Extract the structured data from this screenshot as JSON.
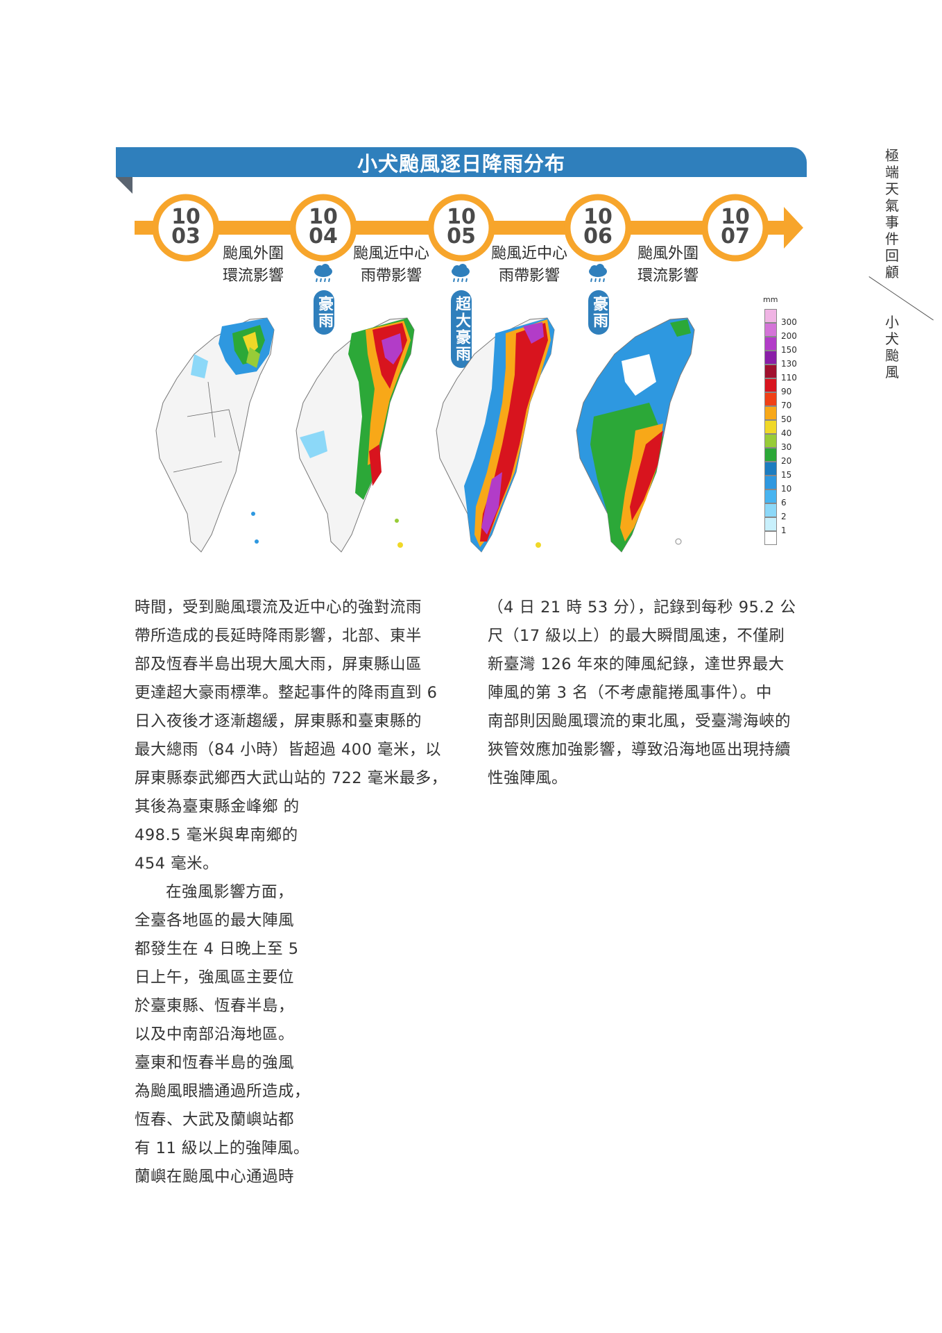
{
  "header": {
    "title": "小犬颱風逐日降雨分布"
  },
  "timeline": {
    "dates": [
      {
        "month": "10",
        "day": "03"
      },
      {
        "month": "10",
        "day": "04"
      },
      {
        "month": "10",
        "day": "05"
      },
      {
        "month": "10",
        "day": "06"
      },
      {
        "month": "10",
        "day": "07"
      }
    ],
    "phases": [
      {
        "line1": "颱風外圍",
        "line2": "環流影響"
      },
      {
        "line1": "颱風近中心",
        "line2": "雨帶影響"
      },
      {
        "line1": "颱風近中心",
        "line2": "雨帶影響"
      },
      {
        "line1": "颱風外圍",
        "line2": "環流影響"
      }
    ],
    "tags": [
      "豪雨",
      "超大豪雨",
      "豪雨"
    ],
    "colors": {
      "arrow": "#f7a52b",
      "tag": "#2f7fbc"
    }
  },
  "legend": {
    "unit": "mm",
    "levels": [
      "300",
      "200",
      "150",
      "130",
      "110",
      "90",
      "70",
      "50",
      "40",
      "30",
      "20",
      "15",
      "10",
      "6",
      "2",
      "1"
    ],
    "colors": [
      "#f0b4e4",
      "#d474d8",
      "#b23cc8",
      "#8a1ea8",
      "#a0102e",
      "#d8141e",
      "#f04016",
      "#f8a818",
      "#f0d828",
      "#98cc38",
      "#2ca838",
      "#1c7cc0",
      "#2e98e0",
      "#48b4f0",
      "#8cd8f8",
      "#c8f0fc",
      "#ffffff"
    ]
  },
  "side": {
    "title": "極端天氣事件回顧",
    "subtitle": "小犬颱風"
  },
  "body": {
    "col1_lines": [
      "時間，受到颱風環流及近中心的強對流雨",
      "帶所造成的長延時降雨影響，北部、東半",
      "部及恆春半島出現大風大雨，屏東縣山區",
      "更達超大豪雨標準。整起事件的降雨直到 6",
      "日入夜後才逐漸趨緩，屏東縣和臺東縣的",
      "最大總雨（84 小時）皆超過 400 毫米，以",
      "屏東縣泰武鄉西大武山站的 722 毫米最多，"
    ],
    "col1b_lines": [
      "其後為臺東縣金峰鄉 的",
      "498.5 毫米與卑南鄉的",
      "454 毫米。",
      "在強風影響方面，",
      "全臺各地區的最大陣風",
      "都發生在 4 日晚上至 5",
      "日上午，強風區主要位",
      "於臺東縣、恆春半島，",
      "以及中南部沿海地區。",
      "臺東和恆春半島的強風",
      "為颱風眼牆通過所造成，",
      "恆春、大武及蘭嶼站都",
      "有 11 級以上的強陣風。",
      "蘭嶼在颱風中心通過時"
    ],
    "col2_lines": [
      "（4 日 21 時 53 分），記錄到每秒 95.2 公",
      "尺（17 級以上）的最大瞬間風速，不僅刷",
      "新臺灣 126 年來的陣風紀錄，達世界最大",
      "陣風的第 3 名（不考慮龍捲風事件）。中",
      "南部則因颱風環流的東北風，受臺灣海峽的",
      "狹管效應加強影響，導致沿海地區出現持續",
      "性強陣風。"
    ]
  }
}
